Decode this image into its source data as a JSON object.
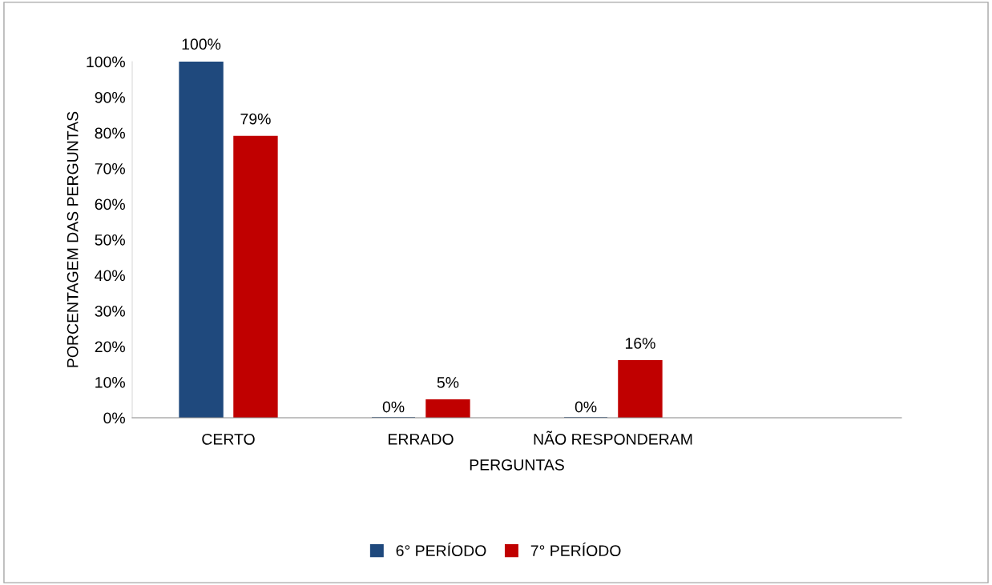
{
  "chart_data": {
    "type": "bar",
    "xlabel": "PERGUNTAS",
    "ylabel": "PORCENTAGEM DAS PERGUNTAS",
    "categories": [
      "CERTO",
      "ERRADO",
      "NÃO RESPONDERAM",
      null
    ],
    "series": [
      {
        "name": "6° PERÍODO",
        "color": "#1f497d",
        "values": [
          100,
          0,
          0,
          null
        ],
        "value_labels": [
          "100%",
          "0%",
          "0%",
          null
        ]
      },
      {
        "name": "7° PERÍODO",
        "color": "#c00000",
        "values": [
          79,
          5,
          16,
          null
        ],
        "value_labels": [
          "79%",
          "5%",
          "16%",
          null
        ]
      }
    ],
    "ylim": [
      0,
      100
    ],
    "yticks": [
      {
        "value": 0,
        "label": "0%"
      },
      {
        "value": 10,
        "label": "10%"
      },
      {
        "value": 20,
        "label": "20%"
      },
      {
        "value": 30,
        "label": "30%"
      },
      {
        "value": 40,
        "label": "40%"
      },
      {
        "value": 50,
        "label": "50%"
      },
      {
        "value": 60,
        "label": "60%"
      },
      {
        "value": 70,
        "label": "70%"
      },
      {
        "value": 80,
        "label": "80%"
      },
      {
        "value": 90,
        "label": "90%"
      },
      {
        "value": 100,
        "label": "100%"
      }
    ],
    "grid": false,
    "legend": "bottom"
  }
}
